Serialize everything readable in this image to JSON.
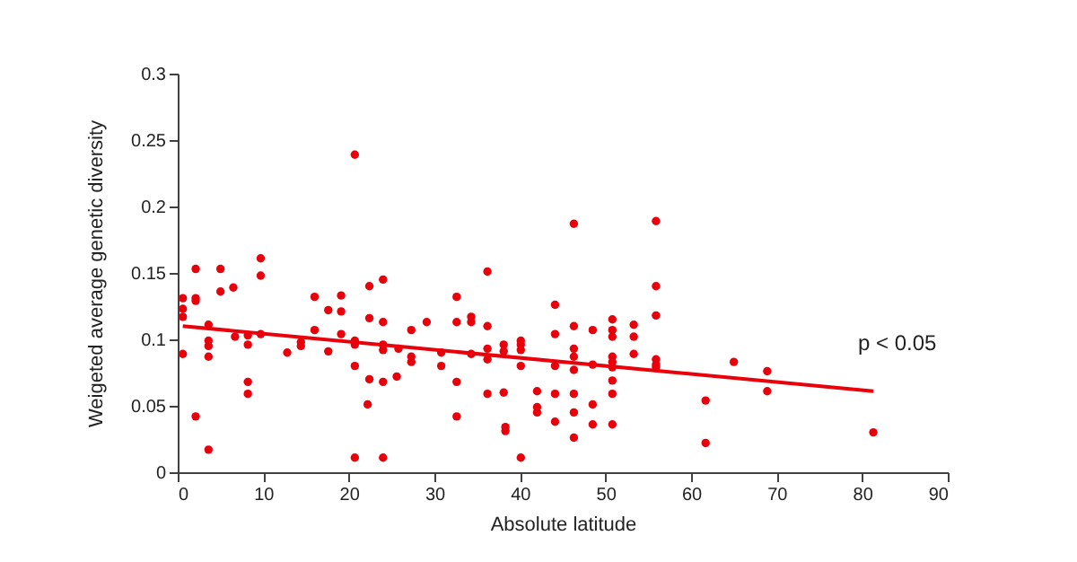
{
  "chart_data": {
    "type": "scatter",
    "xlabel": "Absolute latitude",
    "ylabel": "Weigeted average genetic diversity",
    "xlim": [
      0,
      90
    ],
    "xticks": [
      0,
      10,
      20,
      30,
      40,
      50,
      60,
      70,
      80,
      90
    ],
    "ylim": [
      0,
      0.3
    ],
    "yticks": [
      0,
      0.05,
      0.1,
      0.15,
      0.2,
      0.25,
      0.3
    ],
    "grid": false,
    "legend": false,
    "marker": "circle",
    "series": [
      {
        "color": "#e8000b",
        "x": [
          0.6,
          0.6,
          0.6,
          0.6,
          2.1,
          2.1,
          2.1,
          2.1,
          3.6,
          3.6,
          3.6,
          3.6,
          3.6,
          5.0,
          5.0,
          6.5,
          6.7,
          8.2,
          8.2,
          8.2,
          8.2,
          9.7,
          9.7,
          9.7,
          12.8,
          14.4,
          14.4,
          16.0,
          16.0,
          17.6,
          17.6,
          19.1,
          19.1,
          19.1,
          20.7,
          20.7,
          20.7,
          20.7,
          20.7,
          22.4,
          22.4,
          22.4,
          22.2,
          24.0,
          24.0,
          24.0,
          24.0,
          24.0,
          24.0,
          25.8,
          25.6,
          27.3,
          27.3,
          27.3,
          29.1,
          30.8,
          30.8,
          32.6,
          32.6,
          32.6,
          32.6,
          34.3,
          34.3,
          34.3,
          36.2,
          36.2,
          36.2,
          36.2,
          36.2,
          38.1,
          38.1,
          38.1,
          38.3,
          38.3,
          40.1,
          40.1,
          40.1,
          40.1,
          40.1,
          42.0,
          42.0,
          42.0,
          44.1,
          44.1,
          44.1,
          44.1,
          44.1,
          46.3,
          46.3,
          46.3,
          46.3,
          46.3,
          46.3,
          46.3,
          46.3,
          48.5,
          48.5,
          48.5,
          48.5,
          50.8,
          50.8,
          50.8,
          50.8,
          50.8,
          50.8,
          50.8,
          50.8,
          50.8,
          53.3,
          53.3,
          53.3,
          55.9,
          55.9,
          55.9,
          55.9,
          55.9,
          55.9,
          61.7,
          61.7,
          65.0,
          68.9,
          68.9,
          81.3
        ],
        "values": [
          0.131,
          0.123,
          0.117,
          0.089,
          0.153,
          0.129,
          0.131,
          0.042,
          0.111,
          0.099,
          0.095,
          0.087,
          0.017,
          0.153,
          0.136,
          0.139,
          0.102,
          0.103,
          0.096,
          0.068,
          0.059,
          0.161,
          0.148,
          0.104,
          0.09,
          0.098,
          0.095,
          0.132,
          0.107,
          0.122,
          0.091,
          0.133,
          0.121,
          0.104,
          0.239,
          0.099,
          0.096,
          0.08,
          0.011,
          0.14,
          0.116,
          0.07,
          0.051,
          0.145,
          0.113,
          0.096,
          0.092,
          0.068,
          0.011,
          0.093,
          0.072,
          0.107,
          0.087,
          0.083,
          0.113,
          0.09,
          0.08,
          0.132,
          0.113,
          0.068,
          0.042,
          0.117,
          0.113,
          0.089,
          0.151,
          0.11,
          0.093,
          0.085,
          0.059,
          0.096,
          0.091,
          0.06,
          0.034,
          0.031,
          0.099,
          0.096,
          0.092,
          0.08,
          0.011,
          0.061,
          0.049,
          0.045,
          0.126,
          0.104,
          0.08,
          0.059,
          0.038,
          0.187,
          0.11,
          0.093,
          0.087,
          0.077,
          0.059,
          0.045,
          0.026,
          0.107,
          0.081,
          0.051,
          0.036,
          0.115,
          0.107,
          0.102,
          0.087,
          0.083,
          0.079,
          0.069,
          0.059,
          0.036,
          0.111,
          0.102,
          0.089,
          0.189,
          0.14,
          0.118,
          0.085,
          0.081,
          0.079,
          0.054,
          0.022,
          0.083,
          0.076,
          0.061,
          0.03
        ]
      },
      {
        "type": "line",
        "marker": "none",
        "color": "#e8000b",
        "x": [
          0.6,
          81.3
        ],
        "values": [
          0.11,
          0.061
        ]
      }
    ],
    "annotations": [
      "p < 0.05"
    ]
  }
}
